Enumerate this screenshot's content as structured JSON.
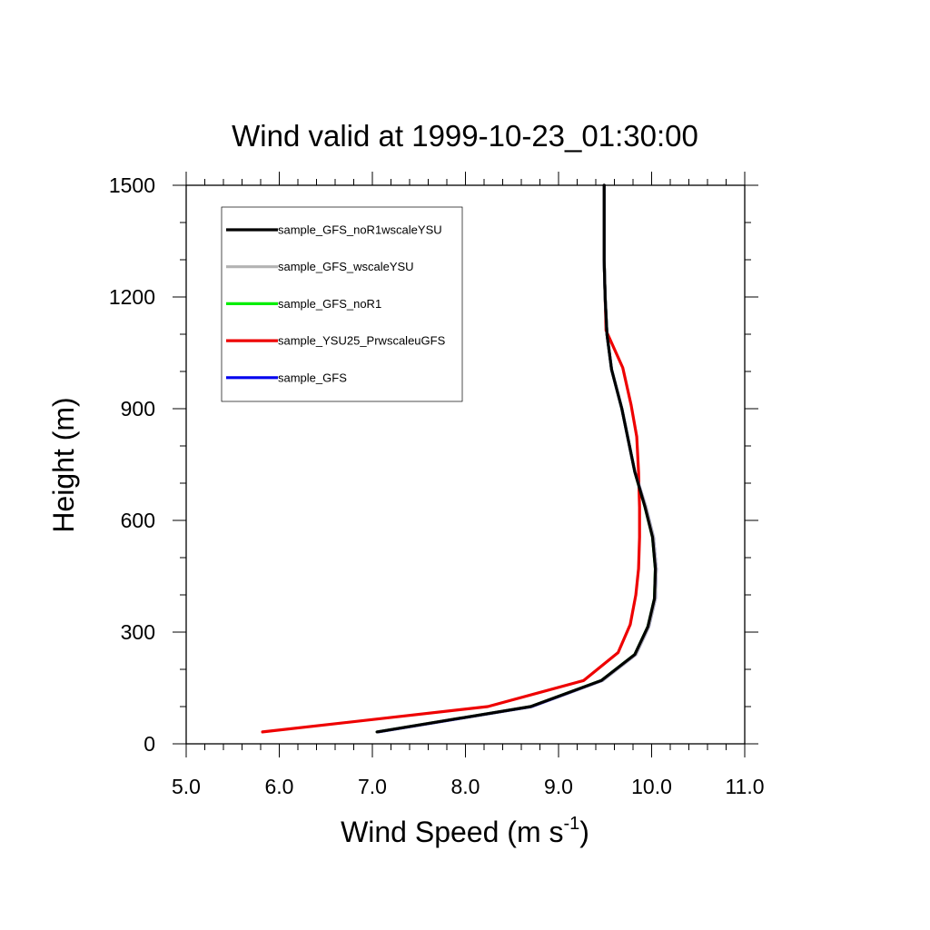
{
  "chart_data": {
    "type": "line",
    "title": "Wind valid at 1999-10-23_01:30:00",
    "xlabel": "Wind Speed (m s",
    "xlabel_superscript": "-1",
    "xlabel_close": ")",
    "ylabel": "Height (m)",
    "xlim": [
      5.0,
      11.0
    ],
    "ylim": [
      0,
      1500
    ],
    "xticks": [
      5.0,
      6.0,
      7.0,
      8.0,
      9.0,
      10.0,
      11.0
    ],
    "xtick_labels": [
      "5.0",
      "6.0",
      "7.0",
      "8.0",
      "9.0",
      "10.0",
      "11.0"
    ],
    "yticks": [
      0,
      300,
      600,
      900,
      1200,
      1500
    ],
    "ytick_labels": [
      "0",
      "300",
      "600",
      "900",
      "1200",
      "1500"
    ],
    "legend_position": "top-left",
    "series": [
      {
        "name": "sample_GFS_noR1wscaleYSU",
        "color": "#000000",
        "draw_order": 5,
        "x": [
          7.05,
          8.7,
          9.46,
          9.82,
          9.96,
          10.03,
          10.04,
          10.01,
          9.93,
          9.82,
          9.68,
          9.57,
          9.52,
          9.5,
          9.49,
          9.49,
          9.49
        ],
        "y": [
          32,
          100,
          170,
          240,
          315,
          390,
          470,
          555,
          635,
          730,
          900,
          1005,
          1100,
          1200,
          1300,
          1400,
          1500
        ]
      },
      {
        "name": "sample_GFS_wscaleYSU",
        "color": "#b3b3b3",
        "draw_order": 4,
        "x": [
          7.05,
          8.7,
          9.47,
          9.83,
          9.97,
          10.04,
          10.05,
          10.02,
          9.94,
          9.82,
          9.68,
          9.57,
          9.52,
          9.5,
          9.49,
          9.49,
          9.49
        ],
        "y": [
          32,
          100,
          170,
          240,
          315,
          390,
          470,
          555,
          635,
          730,
          900,
          1005,
          1100,
          1200,
          1300,
          1400,
          1500
        ]
      },
      {
        "name": "sample_GFS_noR1",
        "color": "#00ee00",
        "draw_order": 2,
        "x": [
          7.05,
          8.7,
          9.46,
          9.82,
          9.96,
          10.03,
          10.04,
          10.01,
          9.93,
          9.82,
          9.68,
          9.57,
          9.52,
          9.5,
          9.49,
          9.49,
          9.49
        ],
        "y": [
          32,
          100,
          170,
          240,
          315,
          390,
          470,
          555,
          635,
          730,
          900,
          1005,
          1100,
          1200,
          1300,
          1400,
          1500
        ]
      },
      {
        "name": "sample_YSU25_PrwscaleuGFS",
        "color": "#ee0000",
        "draw_order": 1,
        "x": [
          5.82,
          8.24,
          9.27,
          9.64,
          9.77,
          9.83,
          9.86,
          9.87,
          9.87,
          9.86,
          9.84,
          9.78,
          9.69,
          9.51,
          9.5,
          9.49,
          9.49
        ],
        "y": [
          32,
          100,
          170,
          245,
          320,
          400,
          470,
          555,
          635,
          730,
          825,
          910,
          1010,
          1110,
          1200,
          1300,
          1500
        ]
      },
      {
        "name": "sample_GFS",
        "color": "#0000ee",
        "draw_order": 3,
        "x": [
          7.06,
          8.71,
          9.47,
          9.83,
          9.97,
          10.04,
          10.05,
          10.02,
          9.94,
          9.82,
          9.68,
          9.57,
          9.52,
          9.5,
          9.49,
          9.49,
          9.49
        ],
        "y": [
          32,
          100,
          170,
          240,
          315,
          390,
          470,
          555,
          635,
          730,
          900,
          1005,
          1100,
          1200,
          1300,
          1400,
          1500
        ]
      }
    ]
  }
}
